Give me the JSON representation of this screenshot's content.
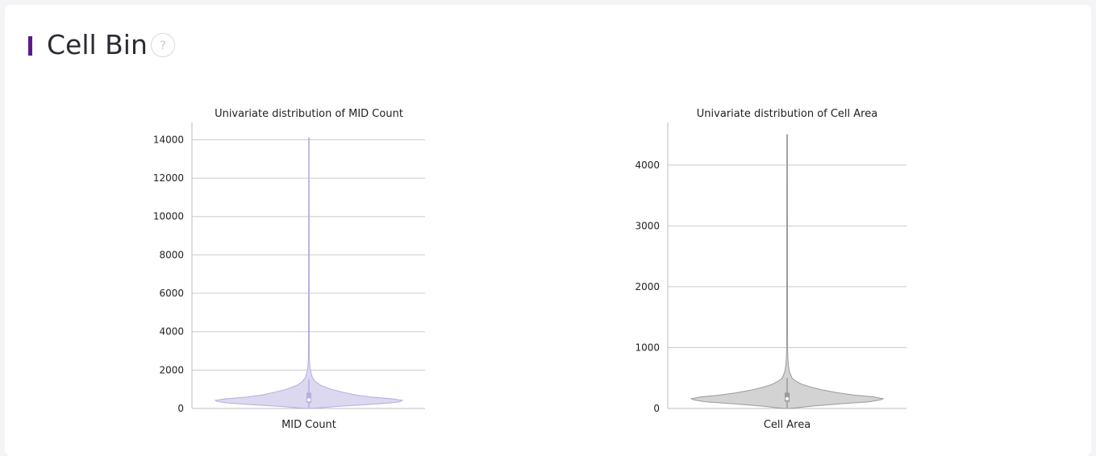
{
  "section": {
    "title": "Cell Bin",
    "help_icon": "question-mark-icon",
    "help_symbol": "?"
  },
  "colors": {
    "accent": "#5b1a8e"
  },
  "chart_data": [
    {
      "type": "violin",
      "title": "Univariate distribution of MID Count",
      "xlabel": "MID Count",
      "ylabel": "",
      "categories": [
        "MID Count"
      ],
      "ylim": [
        0,
        14900
      ],
      "yticks": [
        0,
        2000,
        4000,
        6000,
        8000,
        10000,
        12000,
        14000
      ],
      "grid": true,
      "fill_color": "#dbd8f0",
      "stroke_color": "#b4aede",
      "distribution": {
        "min": 0,
        "max": 14100,
        "median": 450,
        "q1": 300,
        "q3": 820,
        "whisker_low": 0,
        "whisker_high": 1500,
        "density_profile": [
          [
            0,
            0.03
          ],
          [
            100,
            0.28
          ],
          [
            200,
            0.62
          ],
          [
            280,
            0.86
          ],
          [
            350,
            0.97
          ],
          [
            420,
            1.0
          ],
          [
            500,
            0.9
          ],
          [
            600,
            0.66
          ],
          [
            700,
            0.5
          ],
          [
            850,
            0.36
          ],
          [
            1000,
            0.24
          ],
          [
            1200,
            0.13
          ],
          [
            1400,
            0.07
          ],
          [
            1600,
            0.04
          ],
          [
            1800,
            0.025
          ],
          [
            2000,
            0.017
          ],
          [
            2200,
            0.01
          ],
          [
            2600,
            0.005
          ],
          [
            4000,
            0.004
          ],
          [
            14100,
            0.003
          ]
        ]
      }
    },
    {
      "type": "violin",
      "title": "Univariate distribution of Cell Area",
      "xlabel": "Cell Area",
      "ylabel": "",
      "categories": [
        "Cell Area"
      ],
      "ylim": [
        0,
        4700
      ],
      "yticks": [
        0,
        1000,
        2000,
        3000,
        4000
      ],
      "grid": true,
      "fill_color": "#d3d3d3",
      "stroke_color": "#9a9a9a",
      "distribution": {
        "min": 0,
        "max": 4500,
        "median": 160,
        "q1": 110,
        "q3": 260,
        "whisker_low": 0,
        "whisker_high": 500,
        "density_profile": [
          [
            0,
            0.03
          ],
          [
            40,
            0.27
          ],
          [
            80,
            0.58
          ],
          [
            110,
            0.85
          ],
          [
            140,
            0.97
          ],
          [
            160,
            1.0
          ],
          [
            190,
            0.9
          ],
          [
            220,
            0.7
          ],
          [
            260,
            0.52
          ],
          [
            300,
            0.38
          ],
          [
            350,
            0.25
          ],
          [
            400,
            0.15
          ],
          [
            450,
            0.09
          ],
          [
            500,
            0.05
          ],
          [
            600,
            0.025
          ],
          [
            700,
            0.014
          ],
          [
            800,
            0.008
          ],
          [
            1000,
            0.005
          ],
          [
            1500,
            0.004
          ],
          [
            4500,
            0.003
          ]
        ]
      }
    }
  ]
}
